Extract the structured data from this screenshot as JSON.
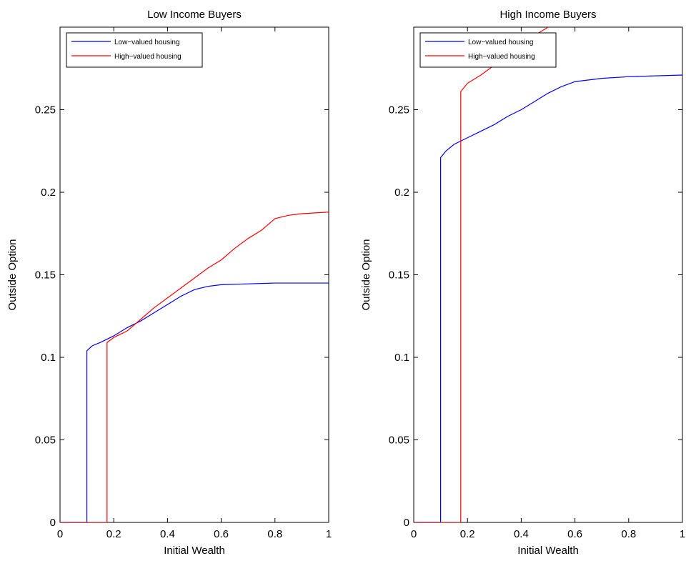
{
  "chart_data": [
    {
      "type": "line",
      "title": "Low Income Buyers",
      "xlabel": "Initial Wealth",
      "ylabel": "Outside Option",
      "xlim": [
        0,
        1
      ],
      "ylim": [
        0,
        0.3
      ],
      "xticks": [
        0,
        0.2,
        0.4,
        0.6,
        0.8,
        1
      ],
      "yticks": [
        0,
        0.05,
        0.1,
        0.15,
        0.2,
        0.25
      ],
      "legend": "upper left",
      "series": [
        {
          "name": "Low−valued housing",
          "color": "#0000ff",
          "x": [
            0,
            0.1,
            0.1,
            0.12,
            0.15,
            0.2,
            0.25,
            0.3,
            0.35,
            0.4,
            0.45,
            0.5,
            0.55,
            0.6,
            0.7,
            0.8,
            1
          ],
          "values": [
            0,
            0,
            0.104,
            0.107,
            0.109,
            0.113,
            0.118,
            0.122,
            0.127,
            0.132,
            0.137,
            0.141,
            0.143,
            0.144,
            0.1445,
            0.145,
            0.145
          ]
        },
        {
          "name": "High−valued housing",
          "color": "#ff0000",
          "x": [
            0,
            0.175,
            0.175,
            0.2,
            0.25,
            0.3,
            0.35,
            0.4,
            0.45,
            0.5,
            0.55,
            0.6,
            0.65,
            0.7,
            0.75,
            0.8,
            0.85,
            0.9,
            1
          ],
          "values": [
            0,
            0,
            0.109,
            0.112,
            0.116,
            0.123,
            0.13,
            0.136,
            0.142,
            0.148,
            0.154,
            0.159,
            0.166,
            0.172,
            0.177,
            0.184,
            0.186,
            0.187,
            0.188
          ]
        }
      ]
    },
    {
      "type": "line",
      "title": "High Income Buyers",
      "xlabel": "Initial Wealth",
      "ylabel": "Outside Option",
      "xlim": [
        0,
        1
      ],
      "ylim": [
        0,
        0.3
      ],
      "xticks": [
        0,
        0.2,
        0.4,
        0.6,
        0.8,
        1
      ],
      "yticks": [
        0,
        0.05,
        0.1,
        0.15,
        0.2,
        0.25
      ],
      "legend": "upper left",
      "series": [
        {
          "name": "Low−valued housing",
          "color": "#0000ff",
          "x": [
            0,
            0.1,
            0.1,
            0.12,
            0.15,
            0.2,
            0.25,
            0.3,
            0.35,
            0.4,
            0.45,
            0.5,
            0.55,
            0.6,
            0.7,
            0.8,
            1
          ],
          "values": [
            0,
            0,
            0.221,
            0.225,
            0.229,
            0.233,
            0.237,
            0.241,
            0.246,
            0.25,
            0.255,
            0.26,
            0.264,
            0.267,
            0.269,
            0.27,
            0.271
          ]
        },
        {
          "name": "High−valued housing",
          "color": "#ff0000",
          "x": [
            0,
            0.175,
            0.175,
            0.2,
            0.25,
            0.3,
            0.35,
            0.4,
            0.45,
            0.5
          ],
          "values": [
            0,
            0,
            0.261,
            0.266,
            0.271,
            0.277,
            0.283,
            0.289,
            0.295,
            0.3
          ]
        }
      ]
    }
  ]
}
